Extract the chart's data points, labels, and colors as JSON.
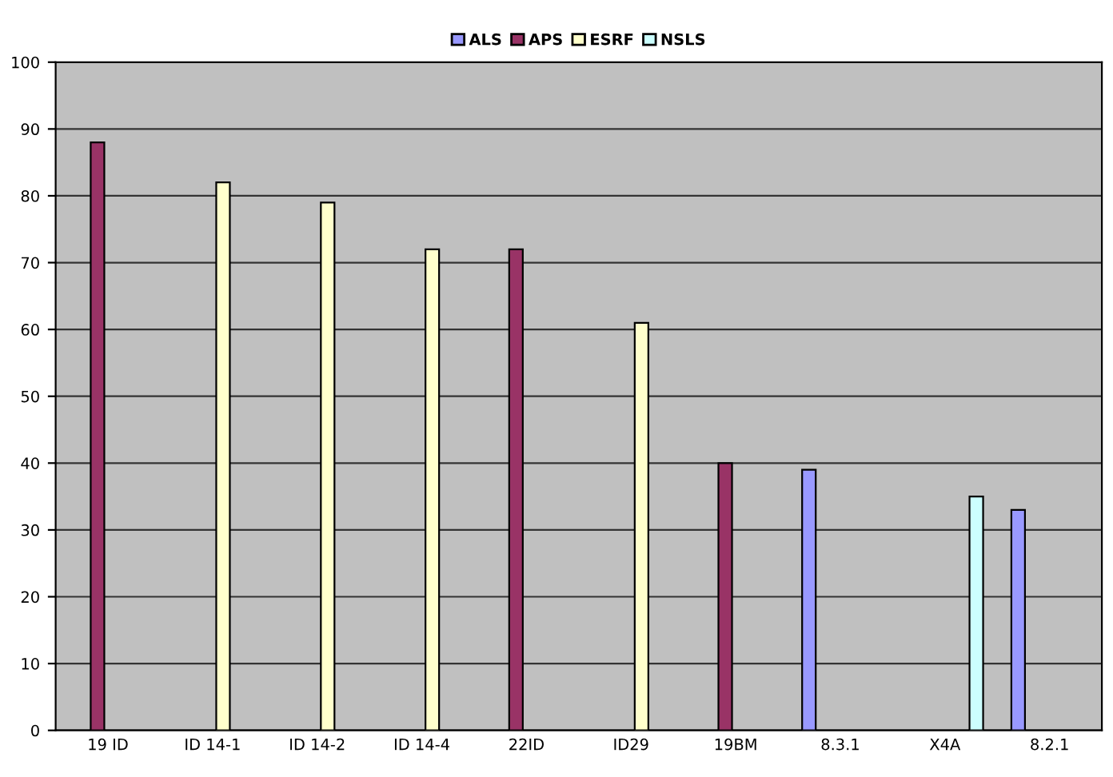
{
  "chart_data": {
    "type": "bar",
    "categories": [
      "19 ID",
      "ID 14-1",
      "ID 14-2",
      "ID 14-4",
      "22ID",
      "ID29",
      "19BM",
      "8.3.1",
      "X4A",
      "8.2.1"
    ],
    "series": [
      {
        "name": "ALS",
        "color": "#9999ff",
        "values": [
          null,
          null,
          null,
          null,
          null,
          null,
          null,
          39,
          null,
          33
        ]
      },
      {
        "name": "APS",
        "color": "#993366",
        "values": [
          88,
          null,
          null,
          null,
          72,
          null,
          40,
          null,
          null,
          null
        ]
      },
      {
        "name": "ESRF",
        "color": "#ffffcc",
        "values": [
          null,
          82,
          79,
          72,
          null,
          61,
          null,
          null,
          null,
          null
        ]
      },
      {
        "name": "NSLS",
        "color": "#ccffff",
        "values": [
          null,
          null,
          null,
          null,
          null,
          null,
          null,
          null,
          35,
          null
        ]
      }
    ],
    "ylim": [
      0,
      100
    ],
    "yticks": [
      0,
      10,
      20,
      30,
      40,
      50,
      60,
      70,
      80,
      90,
      100
    ],
    "grid": "y",
    "legend": "top"
  }
}
